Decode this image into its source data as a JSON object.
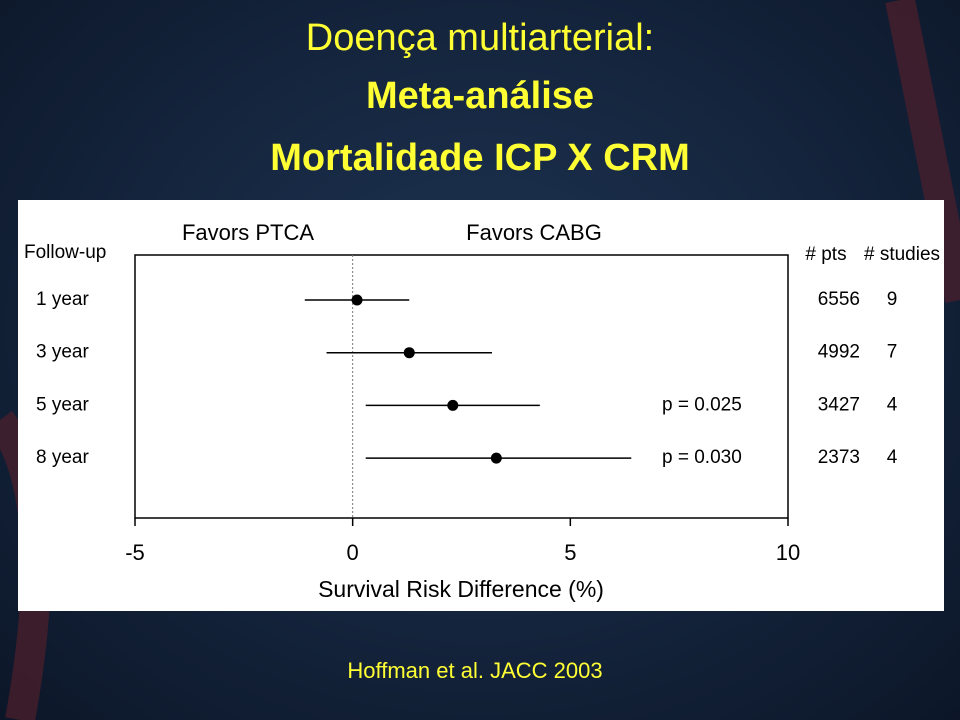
{
  "slide": {
    "title_lines": [
      "Doença multiarterial:",
      "Meta-análise",
      "Mortalidade  ICP X CRM"
    ],
    "citation": "Hoffman et al. JACC 2003"
  },
  "chart_data": {
    "type": "forest",
    "left_label": "Favors PTCA",
    "right_label": "Favors CABG",
    "row_header": "Follow-up",
    "pts_header": "# pts",
    "studies_header": "# studies",
    "categories": [
      "1 year",
      "3 year",
      "5 year",
      "8 year"
    ],
    "values": [
      0.1,
      1.3,
      2.3,
      3.3
    ],
    "lower": [
      -1.1,
      -0.6,
      0.3,
      0.3
    ],
    "upper": [
      1.3,
      3.2,
      4.3,
      6.4
    ],
    "p_labels": [
      null,
      null,
      "p = 0.025",
      "p = 0.030"
    ],
    "pts": [
      6556,
      4992,
      3427,
      2373
    ],
    "studies": [
      9,
      7,
      4,
      4
    ],
    "xlim": [
      -5,
      10
    ],
    "xticks": [
      -5,
      0,
      5,
      10
    ],
    "xlabel": "Survival Risk Difference (%)",
    "color": "#000000"
  }
}
